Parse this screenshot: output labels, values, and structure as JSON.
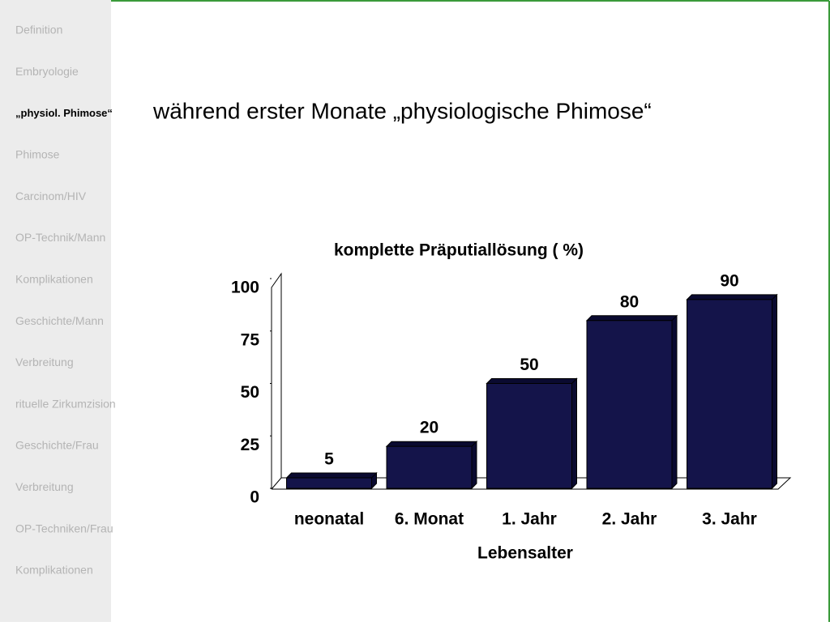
{
  "sidebar": [
    "Definition",
    "Embryologie",
    "„physiol. Phimose“",
    "Phimose",
    "Carcinom/HIV",
    "OP-Technik/Mann",
    "Komplikationen",
    "Geschichte/Mann",
    "Verbreitung",
    "rituelle Zirkumzision",
    "Geschichte/Frau",
    "Verbreitung",
    "OP-Techniken/Frau",
    "Komplikationen"
  ],
  "sidebar_active": 2,
  "heading": "während erster Monate „physiologische Phimose“",
  "chart_data": {
    "type": "bar",
    "title": "komplette Präputiallösung ( %)",
    "x_label": "Lebensalter",
    "categories": [
      "neonatal",
      "6. Monat",
      "1. Jahr",
      "2. Jahr",
      "3. Jahr"
    ],
    "values": [
      5,
      20,
      50,
      80,
      90
    ],
    "color": "#14144a",
    "ylim": [
      0,
      100
    ],
    "yticks": [
      0,
      25,
      50,
      75,
      100
    ]
  }
}
